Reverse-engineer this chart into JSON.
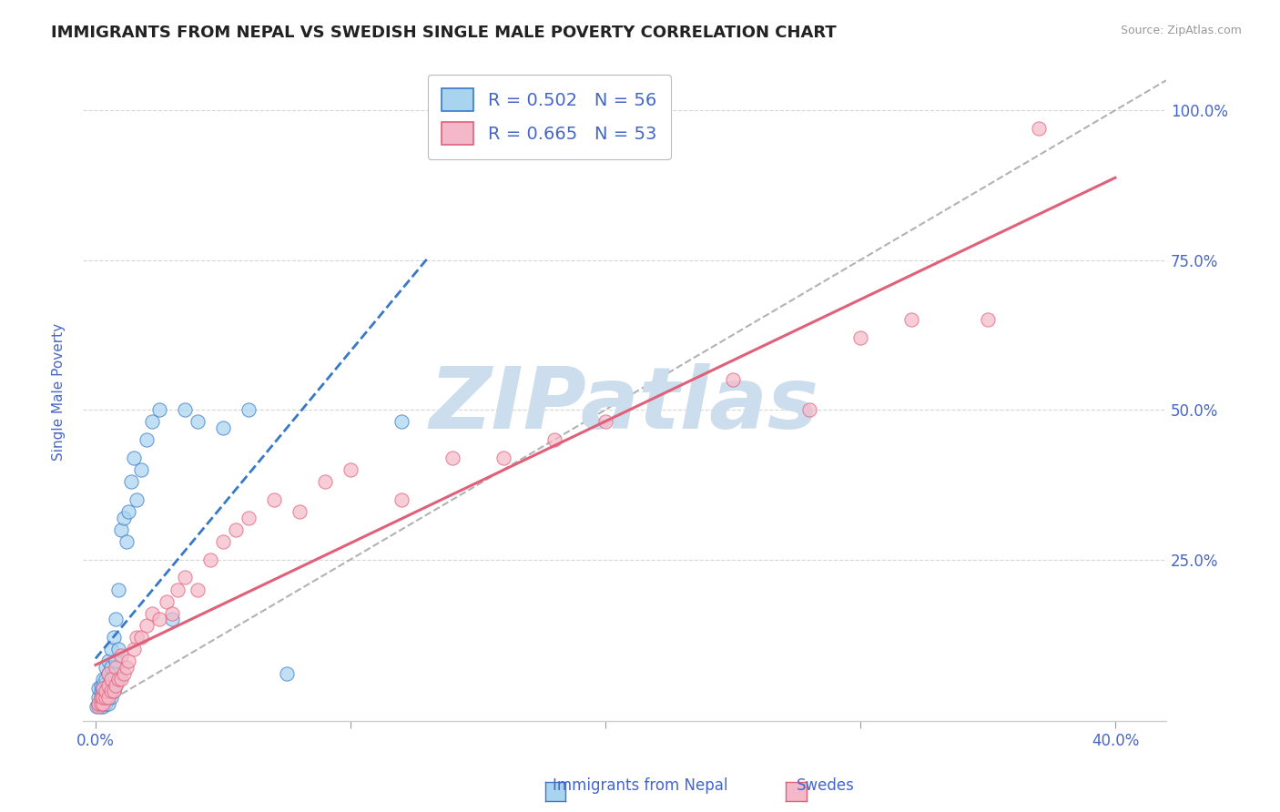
{
  "title": "IMMIGRANTS FROM NEPAL VS SWEDISH SINGLE MALE POVERTY CORRELATION CHART",
  "source_text": "Source: ZipAtlas.com",
  "ylabel": "Single Male Poverty",
  "x_tick_labels": [
    "0.0%",
    "",
    "",
    "",
    "40.0%"
  ],
  "x_tick_positions": [
    0.0,
    0.1,
    0.2,
    0.3,
    0.4
  ],
  "y_tick_labels": [
    "25.0%",
    "50.0%",
    "75.0%",
    "100.0%"
  ],
  "y_tick_positions": [
    0.25,
    0.5,
    0.75,
    1.0
  ],
  "xlim": [
    -0.005,
    0.42
  ],
  "ylim": [
    -0.02,
    1.08
  ],
  "watermark": "ZIPatlas",
  "watermark_color": "#ccdded",
  "nepal_scatter_color": "#a8d4f0",
  "swedes_scatter_color": "#f5b8c8",
  "nepal_line_color": "#3878c8",
  "swedes_line_color": "#e0607a",
  "nepal_marker_edge": "#3878c8",
  "swedes_marker_edge": "#e0607a",
  "title_fontsize": 13,
  "axis_label_color": "#4466cc",
  "tick_label_color": "#4466cc",
  "legend_label1": "R = 0.502   N = 56",
  "legend_label2": "R = 0.665   N = 53",
  "nepal_points": [
    [
      0.0005,
      0.005
    ],
    [
      0.001,
      0.01
    ],
    [
      0.001,
      0.02
    ],
    [
      0.001,
      0.035
    ],
    [
      0.002,
      0.005
    ],
    [
      0.002,
      0.01
    ],
    [
      0.002,
      0.02
    ],
    [
      0.002,
      0.03
    ],
    [
      0.002,
      0.04
    ],
    [
      0.003,
      0.005
    ],
    [
      0.003,
      0.01
    ],
    [
      0.003,
      0.02
    ],
    [
      0.003,
      0.03
    ],
    [
      0.003,
      0.04
    ],
    [
      0.003,
      0.05
    ],
    [
      0.004,
      0.01
    ],
    [
      0.004,
      0.02
    ],
    [
      0.004,
      0.03
    ],
    [
      0.004,
      0.05
    ],
    [
      0.004,
      0.07
    ],
    [
      0.005,
      0.01
    ],
    [
      0.005,
      0.02
    ],
    [
      0.005,
      0.04
    ],
    [
      0.005,
      0.06
    ],
    [
      0.005,
      0.08
    ],
    [
      0.006,
      0.02
    ],
    [
      0.006,
      0.04
    ],
    [
      0.006,
      0.07
    ],
    [
      0.006,
      0.1
    ],
    [
      0.007,
      0.03
    ],
    [
      0.007,
      0.06
    ],
    [
      0.007,
      0.12
    ],
    [
      0.008,
      0.04
    ],
    [
      0.008,
      0.08
    ],
    [
      0.008,
      0.15
    ],
    [
      0.009,
      0.05
    ],
    [
      0.009,
      0.1
    ],
    [
      0.009,
      0.2
    ],
    [
      0.01,
      0.3
    ],
    [
      0.011,
      0.32
    ],
    [
      0.012,
      0.28
    ],
    [
      0.013,
      0.33
    ],
    [
      0.014,
      0.38
    ],
    [
      0.015,
      0.42
    ],
    [
      0.016,
      0.35
    ],
    [
      0.018,
      0.4
    ],
    [
      0.02,
      0.45
    ],
    [
      0.022,
      0.48
    ],
    [
      0.025,
      0.5
    ],
    [
      0.03,
      0.15
    ],
    [
      0.035,
      0.5
    ],
    [
      0.04,
      0.48
    ],
    [
      0.05,
      0.47
    ],
    [
      0.06,
      0.5
    ],
    [
      0.075,
      0.06
    ],
    [
      0.12,
      0.48
    ]
  ],
  "swedes_points": [
    [
      0.001,
      0.005
    ],
    [
      0.001,
      0.01
    ],
    [
      0.002,
      0.01
    ],
    [
      0.002,
      0.02
    ],
    [
      0.003,
      0.01
    ],
    [
      0.003,
      0.02
    ],
    [
      0.003,
      0.035
    ],
    [
      0.004,
      0.02
    ],
    [
      0.004,
      0.03
    ],
    [
      0.005,
      0.02
    ],
    [
      0.005,
      0.04
    ],
    [
      0.005,
      0.06
    ],
    [
      0.006,
      0.03
    ],
    [
      0.006,
      0.05
    ],
    [
      0.007,
      0.03
    ],
    [
      0.008,
      0.04
    ],
    [
      0.008,
      0.07
    ],
    [
      0.009,
      0.05
    ],
    [
      0.01,
      0.05
    ],
    [
      0.01,
      0.09
    ],
    [
      0.011,
      0.06
    ],
    [
      0.012,
      0.07
    ],
    [
      0.013,
      0.08
    ],
    [
      0.015,
      0.1
    ],
    [
      0.016,
      0.12
    ],
    [
      0.018,
      0.12
    ],
    [
      0.02,
      0.14
    ],
    [
      0.022,
      0.16
    ],
    [
      0.025,
      0.15
    ],
    [
      0.028,
      0.18
    ],
    [
      0.03,
      0.16
    ],
    [
      0.032,
      0.2
    ],
    [
      0.035,
      0.22
    ],
    [
      0.04,
      0.2
    ],
    [
      0.045,
      0.25
    ],
    [
      0.05,
      0.28
    ],
    [
      0.055,
      0.3
    ],
    [
      0.06,
      0.32
    ],
    [
      0.07,
      0.35
    ],
    [
      0.08,
      0.33
    ],
    [
      0.09,
      0.38
    ],
    [
      0.1,
      0.4
    ],
    [
      0.12,
      0.35
    ],
    [
      0.14,
      0.42
    ],
    [
      0.16,
      0.42
    ],
    [
      0.18,
      0.45
    ],
    [
      0.2,
      0.48
    ],
    [
      0.25,
      0.55
    ],
    [
      0.28,
      0.5
    ],
    [
      0.3,
      0.62
    ],
    [
      0.32,
      0.65
    ],
    [
      0.35,
      0.65
    ],
    [
      0.37,
      0.97
    ]
  ],
  "ref_line_color": "#aaaaaa",
  "nepal_line_x_end": 0.13,
  "nepal_line_intercept": 0.0,
  "nepal_line_slope": 4.0,
  "swedes_line_x_start": 0.0,
  "swedes_line_x_end": 0.4,
  "swedes_line_intercept": 0.05,
  "swedes_line_slope": 2.3
}
